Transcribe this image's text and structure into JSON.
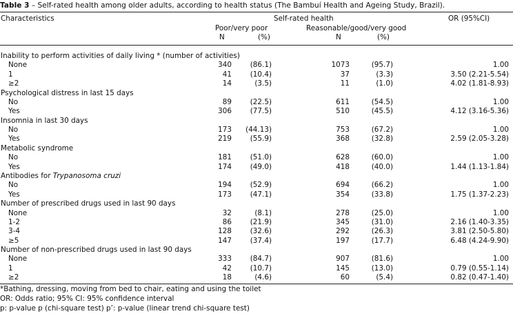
{
  "caption": {
    "label": "Table 3",
    "text": " – Self-rated health among older adults, according to health status (The Bambuí Health and Ageing Study, Brazil)."
  },
  "header": {
    "characteristics": "Characteristics",
    "group": "Self-rated health",
    "or": "OR (95%CI)",
    "poor": "Poor/very poor",
    "reasonable": "Reasonable/good/very good",
    "n": "N",
    "pct": "(%)"
  },
  "rows": [
    {
      "label": "Inability to perform activities of daily living * (number of activities)",
      "section": true
    },
    {
      "label": "None",
      "n1": "340",
      "p1": "(86.1)",
      "n2": "1073",
      "p2": "(95.7)",
      "or": "1.00"
    },
    {
      "label": "1",
      "n1": "41",
      "p1": "(10.4)",
      "n2": "37",
      "p2": "(3.3)",
      "or": "3.50 (2.21-5.54)"
    },
    {
      "label": "≥2",
      "n1": "14",
      "p1": "(3.5)",
      "n2": "11",
      "p2": "(1.0)",
      "or": "4.02 (1.81-8.93)"
    },
    {
      "label": "Psychological distress in last 15 days",
      "section": true
    },
    {
      "label": "No",
      "n1": "89",
      "p1": "(22.5)",
      "n2": "611",
      "p2": "(54.5)",
      "or": "1.00"
    },
    {
      "label": "Yes",
      "n1": "306",
      "p1": "(77.5)",
      "n2": "510",
      "p2": "(45.5)",
      "or": "4.12 (3.16-5.36)"
    },
    {
      "label": "Insomnia in last 30 days",
      "section": true
    },
    {
      "label": "No",
      "n1": "173",
      "p1": "(44.13)",
      "n2": "753",
      "p2": "(67.2)",
      "or": "1.00"
    },
    {
      "label": "Yes",
      "n1": "219",
      "p1": "(55.9)",
      "n2": "368",
      "p2": "(32.8)",
      "or": "2.59 (2.05-3.28)"
    },
    {
      "label": "Metabolic syndrome",
      "section": true
    },
    {
      "label": "No",
      "n1": "181",
      "p1": "(51.0)",
      "n2": "628",
      "p2": "(60.0)",
      "or": "1.00"
    },
    {
      "label": "Yes",
      "n1": "174",
      "p1": "(49.0)",
      "n2": "418",
      "p2": "(40.0)",
      "or": "1.44 (1.13-1.84)"
    },
    {
      "label": "Antibodies for ",
      "label_italic": "Trypanosoma cruzi",
      "section": true
    },
    {
      "label": "No",
      "n1": "194",
      "p1": "(52.9)",
      "n2": "694",
      "p2": "(66.2)",
      "or": "1.00"
    },
    {
      "label": "Yes",
      "n1": "173",
      "p1": "(47.1)",
      "n2": "354",
      "p2": "(33.8)",
      "or": "1.75 (1.37-2.23)"
    },
    {
      "label": "Number of prescribed drugs used in last 90 days",
      "section": true
    },
    {
      "label": "None",
      "n1": "32",
      "p1": "(8.1)",
      "n2": "278",
      "p2": "(25.0)",
      "or": "1.00"
    },
    {
      "label": "1-2",
      "n1": "86",
      "p1": "(21.9)",
      "n2": "345",
      "p2": "(31.0)",
      "or": "2.16 (1.40-3.35)"
    },
    {
      "label": "3-4",
      "n1": "128",
      "p1": "(32.6)",
      "n2": "292",
      "p2": "(26.3)",
      "or": "3.81 (2.50-5.80)"
    },
    {
      "label": "≥5",
      "n1": "147",
      "p1": "(37.4)",
      "n2": "197",
      "p2": "(17.7)",
      "or": "6.48 (4.24-9.90)"
    },
    {
      "label": "Number of non-prescribed drugs used in last 90 days",
      "section": true
    },
    {
      "label": "None",
      "n1": "333",
      "p1": "(84.7)",
      "n2": "907",
      "p2": "(81.6)",
      "or": "1.00"
    },
    {
      "label": "1",
      "n1": "42",
      "p1": "(10.7)",
      "n2": "145",
      "p2": "(13.0)",
      "or": "0.79 (0.55-1.14)"
    },
    {
      "label": "≥2",
      "n1": "18",
      "p1": "(4.6)",
      "n2": "60",
      "p2": "(5.4)",
      "or": "0.82 (0.47-1.40)"
    }
  ],
  "footnotes": [
    "*Bathing, dressing,  moving from bed to chair, eating and using the toilet",
    "OR: Odds ratio; 95% CI: 95% confidence interval",
    "p: p-value p (chi-square test) p’: p-value (linear trend chi-square test)"
  ]
}
